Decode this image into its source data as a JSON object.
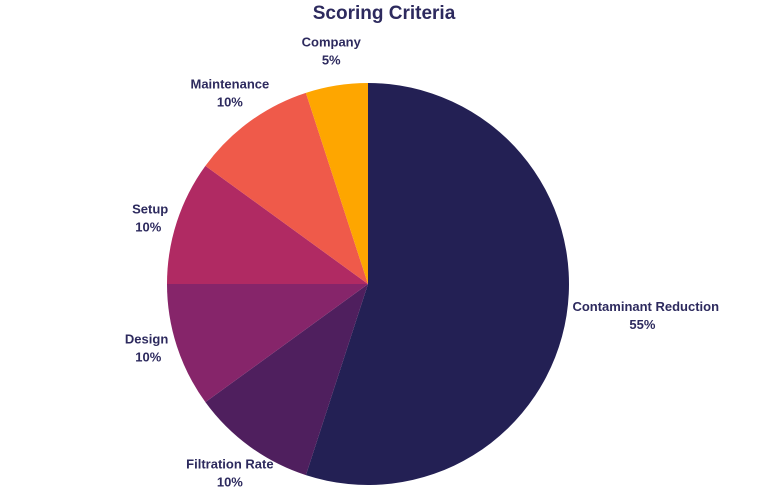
{
  "chart_data": {
    "type": "pie",
    "title": "Scoring Criteria",
    "categories": [
      "Contaminant Reduction",
      "Filtration Rate",
      "Design",
      "Setup",
      "Maintenance",
      "Company"
    ],
    "values": [
      55,
      10,
      10,
      10,
      10,
      5
    ],
    "value_labels": [
      "55%",
      "10%",
      "10%",
      "10%",
      "10%",
      "5%"
    ],
    "colors": [
      "#232054",
      "#4f1f5e",
      "#86256a",
      "#b02a63",
      "#ef5a4a",
      "#fea600"
    ]
  }
}
